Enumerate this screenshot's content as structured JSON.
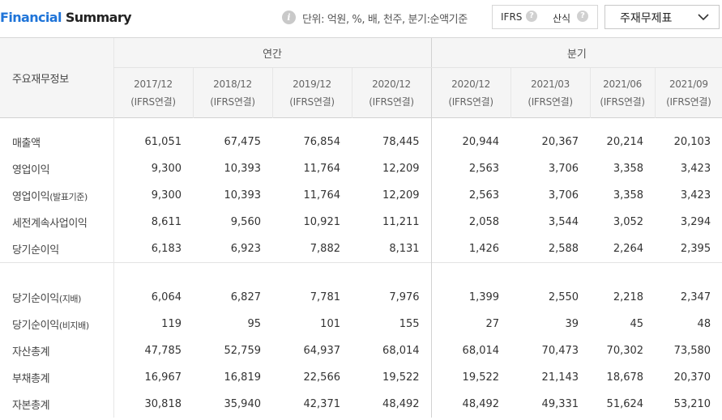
{
  "header": {
    "title_part1": "Financial",
    "title_part2": " Summary",
    "info_icon": "info-icon",
    "unit_text": "단위: 억원, %, 배, 천주, 분기:순액기준",
    "option_ifrs": "IFRS",
    "option_calc": "산식",
    "help_icon": "question-icon",
    "select_label": "주재무제표",
    "select_icon": "chevron-down-icon"
  },
  "table": {
    "label_header": "주요재무정보",
    "annual_header": "연간",
    "quarter_header": "분기",
    "columns": [
      {
        "period": "2017/12",
        "basis": "(IFRS연결)"
      },
      {
        "period": "2018/12",
        "basis": "(IFRS연결)"
      },
      {
        "period": "2019/12",
        "basis": "(IFRS연결)"
      },
      {
        "period": "2020/12",
        "basis": "(IFRS연결)"
      },
      {
        "period": "2020/12",
        "basis": "(IFRS연결)"
      },
      {
        "period": "2021/03",
        "basis": "(IFRS연결)"
      },
      {
        "period": "2021/06",
        "basis": "(IFRS연결)"
      },
      {
        "period": "2021/09",
        "basis": "(IFRS연결)"
      }
    ],
    "group1": [
      {
        "label": "매출액",
        "suffix": "",
        "values": [
          "61,051",
          "67,475",
          "76,854",
          "78,445",
          "20,944",
          "20,367",
          "20,214",
          "20,103"
        ]
      },
      {
        "label": "영업이익",
        "suffix": "",
        "values": [
          "9,300",
          "10,393",
          "11,764",
          "12,209",
          "2,563",
          "3,706",
          "3,358",
          "3,423"
        ]
      },
      {
        "label": "영업이익",
        "suffix": "(발표기준)",
        "values": [
          "9,300",
          "10,393",
          "11,764",
          "12,209",
          "2,563",
          "3,706",
          "3,358",
          "3,423"
        ]
      },
      {
        "label": "세전계속사업이익",
        "suffix": "",
        "values": [
          "8,611",
          "9,560",
          "10,921",
          "11,211",
          "2,058",
          "3,544",
          "3,052",
          "3,294"
        ]
      },
      {
        "label": "당기순이익",
        "suffix": "",
        "values": [
          "6,183",
          "6,923",
          "7,882",
          "8,131",
          "1,426",
          "2,588",
          "2,264",
          "2,395"
        ]
      }
    ],
    "group2": [
      {
        "label": "당기순이익",
        "suffix": "(지배)",
        "values": [
          "6,064",
          "6,827",
          "7,781",
          "7,976",
          "1,399",
          "2,550",
          "2,218",
          "2,347"
        ]
      },
      {
        "label": "당기순이익",
        "suffix": "(비지배)",
        "values": [
          "119",
          "95",
          "101",
          "155",
          "27",
          "39",
          "45",
          "48"
        ]
      },
      {
        "label": "자산총계",
        "suffix": "",
        "values": [
          "47,785",
          "52,759",
          "64,937",
          "68,014",
          "68,014",
          "70,473",
          "70,302",
          "73,580"
        ]
      },
      {
        "label": "부채총계",
        "suffix": "",
        "values": [
          "16,967",
          "16,819",
          "22,566",
          "19,522",
          "19,522",
          "21,143",
          "18,678",
          "20,370"
        ]
      },
      {
        "label": "자본총계",
        "suffix": "",
        "values": [
          "30,818",
          "35,940",
          "42,371",
          "48,492",
          "48,492",
          "49,331",
          "51,624",
          "53,210"
        ]
      }
    ]
  }
}
